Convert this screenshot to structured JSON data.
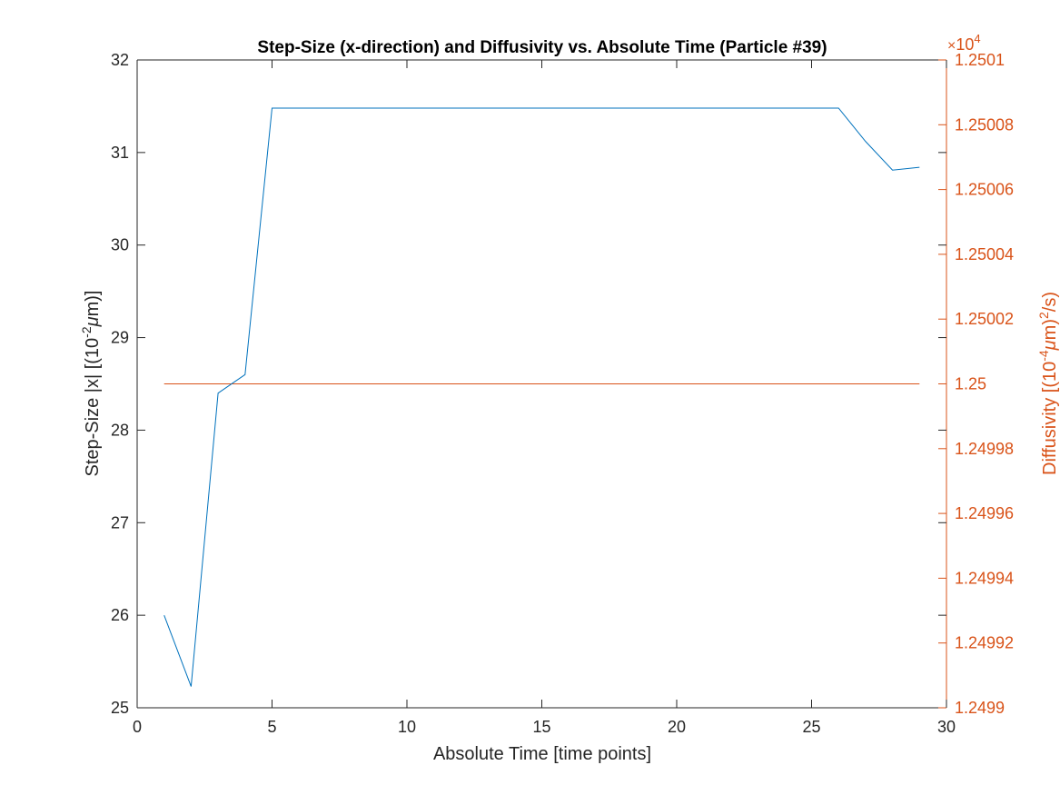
{
  "chart_data": {
    "type": "line",
    "title": "Step-Size (x-direction) and Diffusivity vs. Absolute Time (Particle #39)",
    "xlabel": "Absolute Time [time points]",
    "ylabel_left": {
      "pre": "Step-Size |x| [(10",
      "sup": "-2",
      "mu": "μ",
      "post": "m)]"
    },
    "ylabel_right": {
      "pre": "Diffusivity [(10",
      "sup": "-4",
      "mu": "μ",
      "post": "m)",
      "sup2": "2",
      "post2": "/s)"
    },
    "right_exponent": {
      "times": "×",
      "base": "10",
      "power": "4"
    },
    "xlim": [
      0,
      30
    ],
    "ylim_left": [
      25,
      32
    ],
    "ylim_right": [
      1.2499,
      1.2501
    ],
    "xticks": [
      "0",
      "5",
      "10",
      "15",
      "20",
      "25",
      "30"
    ],
    "yticks_left": [
      "25",
      "26",
      "27",
      "28",
      "29",
      "30",
      "31",
      "32"
    ],
    "yticks_right": [
      "1.2499",
      "1.24992",
      "1.24994",
      "1.24996",
      "1.24998",
      "1.25",
      "1.25002",
      "1.25004",
      "1.25006",
      "1.25008",
      "1.2501"
    ],
    "grid": false,
    "colors": {
      "left": "#0072BD",
      "right": "#D95319",
      "axis": "#262626"
    },
    "series": [
      {
        "axis": "left",
        "x": [
          1,
          2,
          3,
          4,
          5,
          6,
          7,
          8,
          9,
          10,
          11,
          12,
          13,
          14,
          15,
          16,
          17,
          18,
          19,
          20,
          21,
          22,
          23,
          24,
          25,
          26,
          27,
          28,
          29
        ],
        "y": [
          26.0,
          25.23,
          28.4,
          28.6,
          31.48,
          31.48,
          31.48,
          31.48,
          31.48,
          31.48,
          31.48,
          31.48,
          31.48,
          31.48,
          31.48,
          31.48,
          31.48,
          31.48,
          31.48,
          31.48,
          31.48,
          31.48,
          31.48,
          31.48,
          31.48,
          31.48,
          31.12,
          30.81,
          30.84
        ]
      },
      {
        "axis": "right",
        "x": [
          1,
          29
        ],
        "y": [
          1.25,
          1.25
        ]
      }
    ]
  }
}
